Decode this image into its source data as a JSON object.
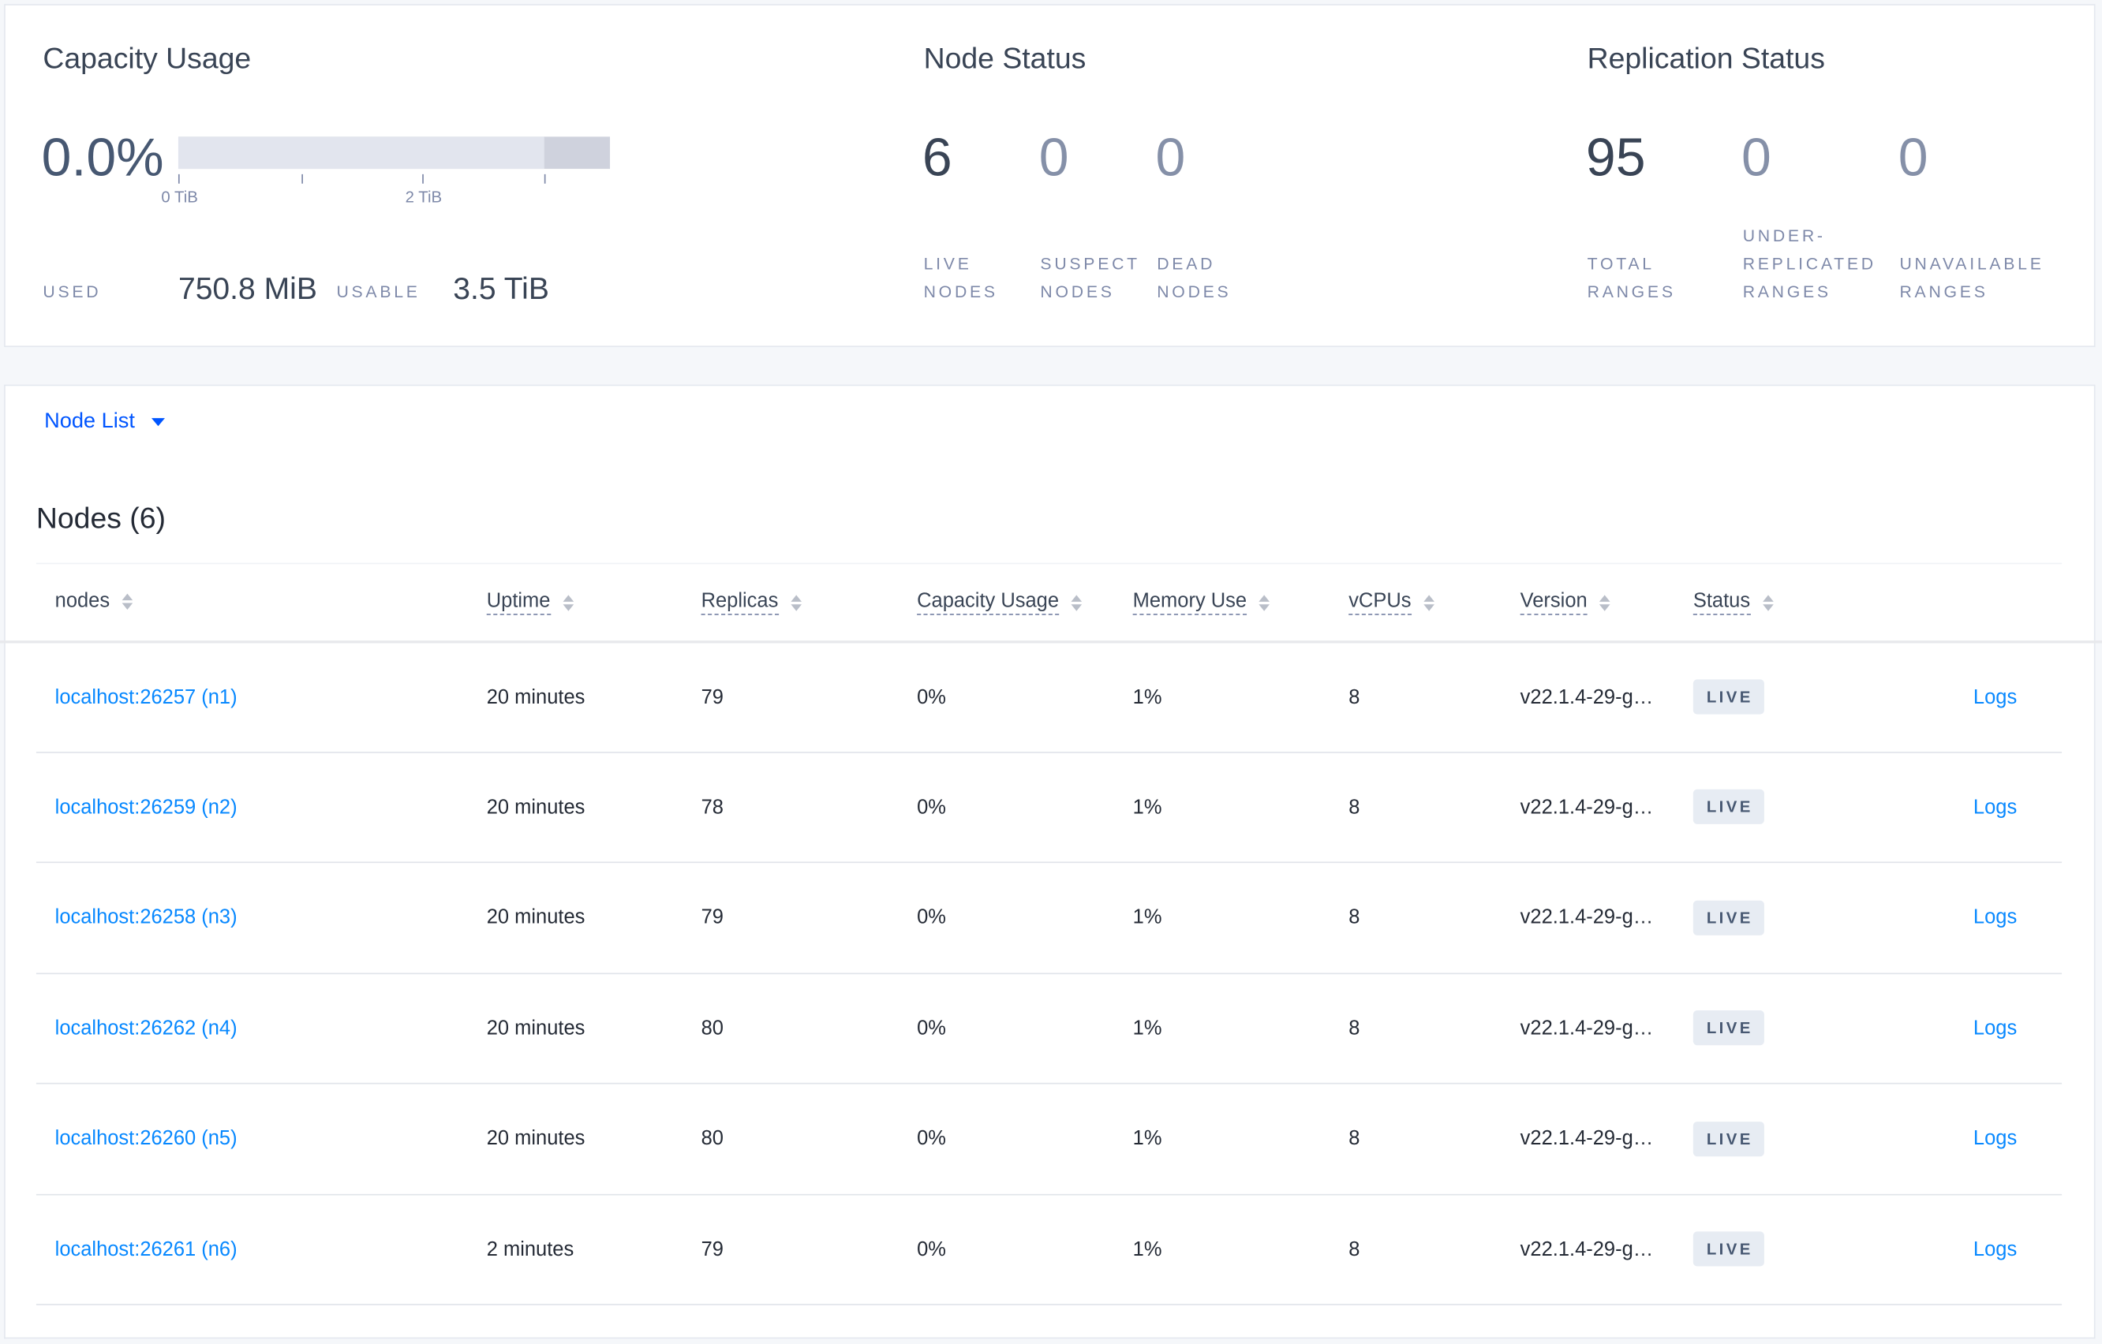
{
  "capacity": {
    "title": "Capacity Usage",
    "percent": "0.0%",
    "used_fraction": 0.0,
    "axis_ticks": [
      "0 TiB",
      "2 TiB"
    ],
    "used_label": "USED",
    "used_value": "750.8 MiB",
    "usable_label": "USABLE",
    "usable_value": "3.5 TiB"
  },
  "node_status": {
    "title": "Node Status",
    "stats": [
      {
        "value": "6",
        "line1": "LIVE",
        "line2": "NODES"
      },
      {
        "value": "0",
        "line1": "SUSPECT",
        "line2": "NODES"
      },
      {
        "value": "0",
        "line1": "DEAD",
        "line2": "NODES"
      }
    ]
  },
  "replication_status": {
    "title": "Replication Status",
    "stats": [
      {
        "value": "95",
        "line0": "",
        "line1": "TOTAL",
        "line2": "RANGES"
      },
      {
        "value": "0",
        "line0": "UNDER-",
        "line1": "REPLICATED",
        "line2": "RANGES"
      },
      {
        "value": "0",
        "line0": "",
        "line1": "UNAVAILABLE",
        "line2": "RANGES"
      }
    ]
  },
  "colors": {
    "accent": "#0055ff",
    "link": "#0788ff",
    "text": "#394455",
    "muted": "#7e89a9",
    "badge_bg": "#e7ecf3"
  },
  "view_selector": {
    "label": "Node List"
  },
  "nodes_table": {
    "title": "Nodes (6)",
    "columns": [
      "nodes",
      "Uptime",
      "Replicas",
      "Capacity Usage",
      "Memory Use",
      "vCPUs",
      "Version",
      "Status"
    ],
    "rows": [
      {
        "node": "localhost:26257 (n1)",
        "uptime": "20 minutes",
        "replicas": "79",
        "capacity": "0%",
        "memory": "1%",
        "vcpus": "8",
        "version": "v22.1.4-29-g…",
        "status": "LIVE",
        "logs": "Logs"
      },
      {
        "node": "localhost:26259 (n2)",
        "uptime": "20 minutes",
        "replicas": "78",
        "capacity": "0%",
        "memory": "1%",
        "vcpus": "8",
        "version": "v22.1.4-29-g…",
        "status": "LIVE",
        "logs": "Logs"
      },
      {
        "node": "localhost:26258 (n3)",
        "uptime": "20 minutes",
        "replicas": "79",
        "capacity": "0%",
        "memory": "1%",
        "vcpus": "8",
        "version": "v22.1.4-29-g…",
        "status": "LIVE",
        "logs": "Logs"
      },
      {
        "node": "localhost:26262 (n4)",
        "uptime": "20 minutes",
        "replicas": "80",
        "capacity": "0%",
        "memory": "1%",
        "vcpus": "8",
        "version": "v22.1.4-29-g…",
        "status": "LIVE",
        "logs": "Logs"
      },
      {
        "node": "localhost:26260 (n5)",
        "uptime": "20 minutes",
        "replicas": "80",
        "capacity": "0%",
        "memory": "1%",
        "vcpus": "8",
        "version": "v22.1.4-29-g…",
        "status": "LIVE",
        "logs": "Logs"
      },
      {
        "node": "localhost:26261 (n6)",
        "uptime": "2 minutes",
        "replicas": "79",
        "capacity": "0%",
        "memory": "1%",
        "vcpus": "8",
        "version": "v22.1.4-29-g…",
        "status": "LIVE",
        "logs": "Logs"
      }
    ]
  }
}
